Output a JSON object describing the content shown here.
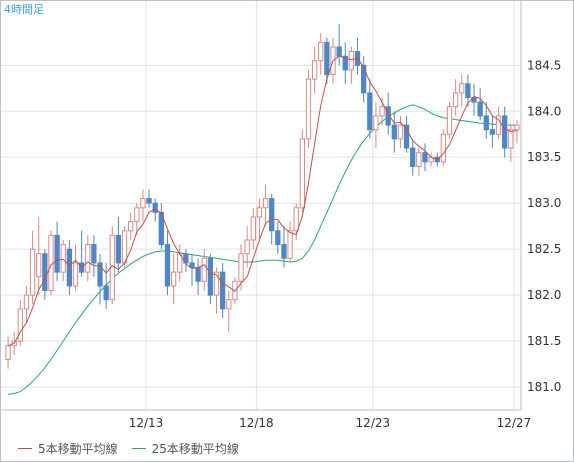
{
  "chart_data": {
    "type": "candlestick",
    "period_label": "4時間足",
    "x_ticks": [
      "12/13",
      "12/18",
      "12/23",
      "12/27"
    ],
    "y_ticks": [
      181.0,
      181.5,
      182.0,
      182.5,
      183.0,
      183.5,
      184.0,
      184.5
    ],
    "ylim": [
      180.75,
      185.2
    ],
    "grid": true,
    "legend_position": "bottom-left",
    "colors": {
      "up_candle": "#d98989",
      "down_candle": "#4f87c4",
      "ma5": "#c0504d",
      "ma25": "#2aa86a",
      "grid": "#e3e3e3",
      "axis": "#b9c2cc"
    },
    "series": [
      {
        "name": "5本移動平均線",
        "key": "ma5"
      },
      {
        "name": "25本移動平均線",
        "key": "ma25"
      }
    ],
    "candles_ohlc": [
      [
        181.3,
        181.55,
        181.2,
        181.45
      ],
      [
        181.45,
        181.6,
        181.35,
        181.5
      ],
      [
        181.5,
        181.95,
        181.45,
        181.85
      ],
      [
        181.85,
        182.1,
        181.7,
        182.0
      ],
      [
        182.0,
        182.7,
        181.9,
        182.5
      ],
      [
        182.2,
        182.85,
        182.0,
        182.45
      ],
      [
        182.45,
        182.5,
        181.95,
        182.05
      ],
      [
        182.05,
        182.7,
        182.0,
        182.65
      ],
      [
        182.65,
        182.8,
        182.15,
        182.25
      ],
      [
        182.25,
        182.6,
        182.15,
        182.55
      ],
      [
        182.5,
        182.6,
        182.0,
        182.1
      ],
      [
        182.1,
        182.55,
        182.05,
        182.35
      ],
      [
        182.35,
        182.7,
        182.2,
        182.25
      ],
      [
        182.25,
        182.65,
        182.15,
        182.55
      ],
      [
        182.55,
        182.65,
        182.2,
        182.35
      ],
      [
        182.35,
        182.45,
        181.9,
        182.1
      ],
      [
        182.1,
        182.35,
        181.85,
        181.95
      ],
      [
        181.95,
        182.75,
        181.9,
        182.65
      ],
      [
        182.65,
        182.85,
        182.25,
        182.35
      ],
      [
        182.35,
        182.75,
        182.3,
        182.7
      ],
      [
        182.7,
        182.9,
        182.6,
        182.8
      ],
      [
        182.8,
        183.0,
        182.65,
        182.95
      ],
      [
        182.95,
        183.15,
        182.8,
        183.05
      ],
      [
        183.05,
        183.15,
        182.95,
        183.0
      ],
      [
        183.0,
        183.05,
        182.8,
        182.9
      ],
      [
        182.9,
        183.0,
        182.5,
        182.55
      ],
      [
        182.55,
        182.7,
        182.0,
        182.1
      ],
      [
        182.1,
        182.45,
        181.9,
        182.25
      ],
      [
        182.25,
        182.55,
        182.15,
        182.45
      ],
      [
        182.45,
        182.5,
        182.25,
        182.35
      ],
      [
        182.35,
        182.45,
        182.1,
        182.3
      ],
      [
        182.3,
        182.4,
        182.0,
        182.15
      ],
      [
        182.15,
        182.5,
        182.05,
        182.4
      ],
      [
        182.4,
        182.45,
        181.9,
        182.0
      ],
      [
        182.0,
        182.3,
        181.8,
        182.25
      ],
      [
        182.25,
        182.35,
        181.75,
        181.85
      ],
      [
        181.85,
        182.05,
        181.6,
        181.95
      ],
      [
        181.95,
        182.2,
        181.9,
        182.15
      ],
      [
        182.15,
        182.55,
        182.05,
        182.45
      ],
      [
        182.45,
        182.75,
        182.3,
        182.6
      ],
      [
        182.6,
        182.95,
        182.5,
        182.85
      ],
      [
        182.85,
        183.05,
        182.6,
        182.95
      ],
      [
        182.95,
        183.2,
        182.75,
        183.05
      ],
      [
        183.05,
        183.1,
        182.55,
        182.7
      ],
      [
        182.7,
        182.8,
        182.45,
        182.55
      ],
      [
        182.55,
        182.75,
        182.3,
        182.4
      ],
      [
        182.4,
        182.8,
        182.35,
        182.7
      ],
      [
        182.7,
        183.0,
        182.6,
        182.95
      ],
      [
        182.95,
        183.8,
        182.9,
        183.7
      ],
      [
        183.7,
        184.45,
        183.6,
        184.35
      ],
      [
        184.35,
        184.7,
        184.2,
        184.55
      ],
      [
        184.55,
        184.85,
        184.4,
        184.75
      ],
      [
        184.75,
        184.8,
        184.3,
        184.4
      ],
      [
        184.4,
        184.8,
        184.3,
        184.7
      ],
      [
        184.7,
        184.95,
        184.5,
        184.6
      ],
      [
        184.6,
        184.75,
        184.3,
        184.45
      ],
      [
        184.45,
        184.7,
        184.3,
        184.65
      ],
      [
        184.65,
        184.8,
        184.4,
        184.5
      ],
      [
        184.5,
        184.6,
        184.1,
        184.2
      ],
      [
        184.2,
        184.35,
        183.7,
        183.8
      ],
      [
        183.8,
        184.1,
        183.6,
        183.95
      ],
      [
        183.95,
        184.15,
        183.85,
        184.05
      ],
      [
        184.05,
        184.2,
        183.75,
        183.85
      ],
      [
        183.85,
        184.0,
        183.55,
        183.7
      ],
      [
        183.7,
        183.95,
        183.6,
        183.85
      ],
      [
        183.85,
        183.95,
        183.55,
        183.6
      ],
      [
        183.6,
        183.7,
        183.3,
        183.4
      ],
      [
        183.4,
        183.6,
        183.3,
        183.55
      ],
      [
        183.55,
        183.65,
        183.35,
        183.45
      ],
      [
        183.45,
        183.55,
        183.4,
        183.5
      ],
      [
        183.5,
        183.55,
        183.4,
        183.45
      ],
      [
        183.45,
        183.8,
        183.4,
        183.75
      ],
      [
        183.75,
        184.1,
        183.7,
        184.05
      ],
      [
        184.05,
        184.35,
        183.95,
        184.2
      ],
      [
        184.2,
        184.4,
        184.05,
        184.3
      ],
      [
        184.3,
        184.4,
        184.05,
        184.15
      ],
      [
        184.15,
        184.3,
        183.95,
        184.1
      ],
      [
        184.1,
        184.25,
        183.9,
        183.95
      ],
      [
        183.95,
        184.1,
        183.7,
        183.8
      ],
      [
        183.8,
        183.95,
        183.6,
        183.75
      ],
      [
        183.75,
        184.05,
        183.7,
        183.95
      ],
      [
        183.95,
        184.05,
        183.5,
        183.6
      ],
      [
        183.6,
        183.85,
        183.45,
        183.8
      ],
      [
        183.8,
        183.9,
        183.65,
        183.85
      ]
    ],
    "ma25_values": [
      180.92,
      180.93,
      180.95,
      181.0,
      181.06,
      181.13,
      181.21,
      181.3,
      181.4,
      181.5,
      181.6,
      181.7,
      181.79,
      181.88,
      181.96,
      182.04,
      182.11,
      182.18,
      182.24,
      182.29,
      182.34,
      182.38,
      182.42,
      182.45,
      182.47,
      182.48,
      182.48,
      182.47,
      182.46,
      182.45,
      182.44,
      182.43,
      182.42,
      182.41,
      182.4,
      182.39,
      182.38,
      182.37,
      182.36,
      182.36,
      182.36,
      182.37,
      182.38,
      182.38,
      182.38,
      182.37,
      182.36,
      182.37,
      182.4,
      182.48,
      182.6,
      182.75,
      182.9,
      183.05,
      183.2,
      183.34,
      183.47,
      183.58,
      183.68,
      183.76,
      183.83,
      183.89,
      183.94,
      183.98,
      184.02,
      184.05,
      184.07,
      184.05,
      184.02,
      183.98,
      183.95,
      183.93,
      183.92,
      183.91,
      183.9,
      183.89,
      183.88,
      183.87,
      183.87,
      183.86,
      183.86,
      183.85,
      183.85,
      183.85
    ]
  }
}
